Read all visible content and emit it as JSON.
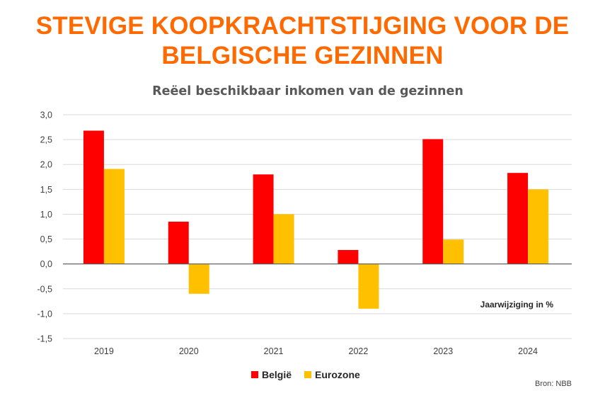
{
  "headline": {
    "line1": "STEVIGE KOOPKRACHTSTIJGING VOOR DE",
    "line2": "BELGISCHE GEZINNEN"
  },
  "chart_data": {
    "type": "bar",
    "title": "Reëel beschikbaar inkomen van de gezinnen",
    "categories": [
      "2019",
      "2020",
      "2021",
      "2022",
      "2023",
      "2024"
    ],
    "series": [
      {
        "name": "België",
        "color": "#ff0000",
        "values": [
          2.68,
          0.85,
          1.8,
          0.28,
          2.51,
          1.83
        ]
      },
      {
        "name": "Eurozone",
        "color": "#ffc000",
        "values": [
          1.91,
          -0.6,
          1.0,
          -0.9,
          0.49,
          1.5
        ]
      }
    ],
    "ylim": [
      -1.5,
      3.0
    ],
    "yticks": [
      -1.5,
      -1.0,
      -0.5,
      0.0,
      0.5,
      1.0,
      1.5,
      2.0,
      2.5,
      3.0
    ],
    "ytick_labels": [
      "-1,5",
      "-1,0",
      "-0,5",
      "0,0",
      "0,5",
      "1,0",
      "1,5",
      "2,0",
      "2,5",
      "3,0"
    ],
    "grid": true,
    "annotation": "Jaarwijziging in %",
    "legend_position": "bottom-center",
    "source": "Bron: NBB"
  }
}
